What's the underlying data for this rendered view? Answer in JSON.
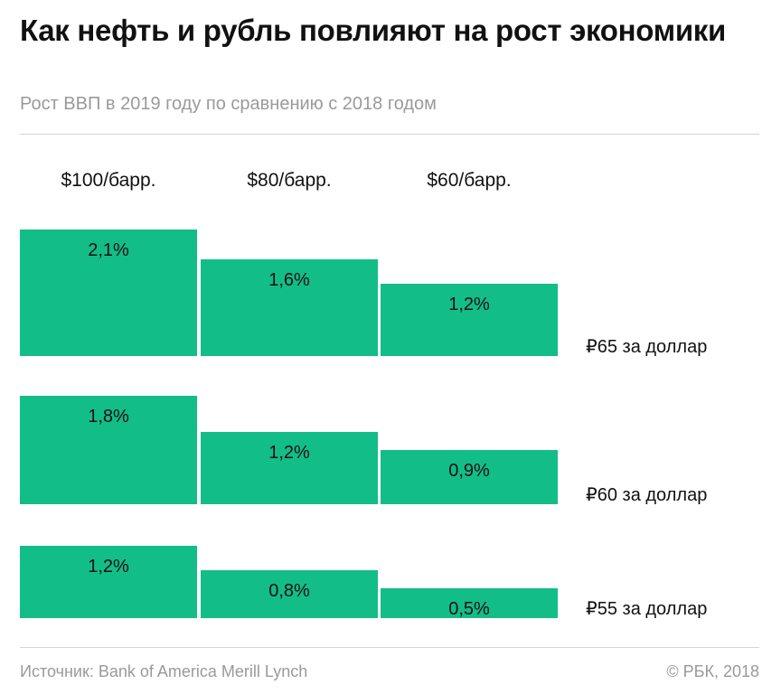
{
  "header": {
    "title": "Как нефть и рубль повлияют на рост экономики",
    "subtitle": "Рост ВВП в 2019 году по сравнению с 2018 годом"
  },
  "footer": {
    "source": "Источник: Bank of America Merill Lynch",
    "copyright": "© РБК, 2018"
  },
  "colors": {
    "bar": "#13bd87"
  },
  "chart_data": {
    "type": "bar",
    "categories": [
      "$100/барр.",
      "$80/барр.",
      "$60/барр."
    ],
    "series": [
      {
        "name": "₽65 за доллар",
        "values": [
          2.1,
          1.6,
          1.2
        ],
        "labels": [
          "2,1%",
          "1,6%",
          "1,2%"
        ]
      },
      {
        "name": "₽60 за доллар",
        "values": [
          1.8,
          1.2,
          0.9
        ],
        "labels": [
          "1,8%",
          "1,2%",
          "0,9%"
        ]
      },
      {
        "name": "₽55 за доллар",
        "values": [
          1.2,
          0.8,
          0.5
        ],
        "labels": [
          "1,2%",
          "0,8%",
          "0,5%"
        ]
      }
    ],
    "unit": "%"
  }
}
